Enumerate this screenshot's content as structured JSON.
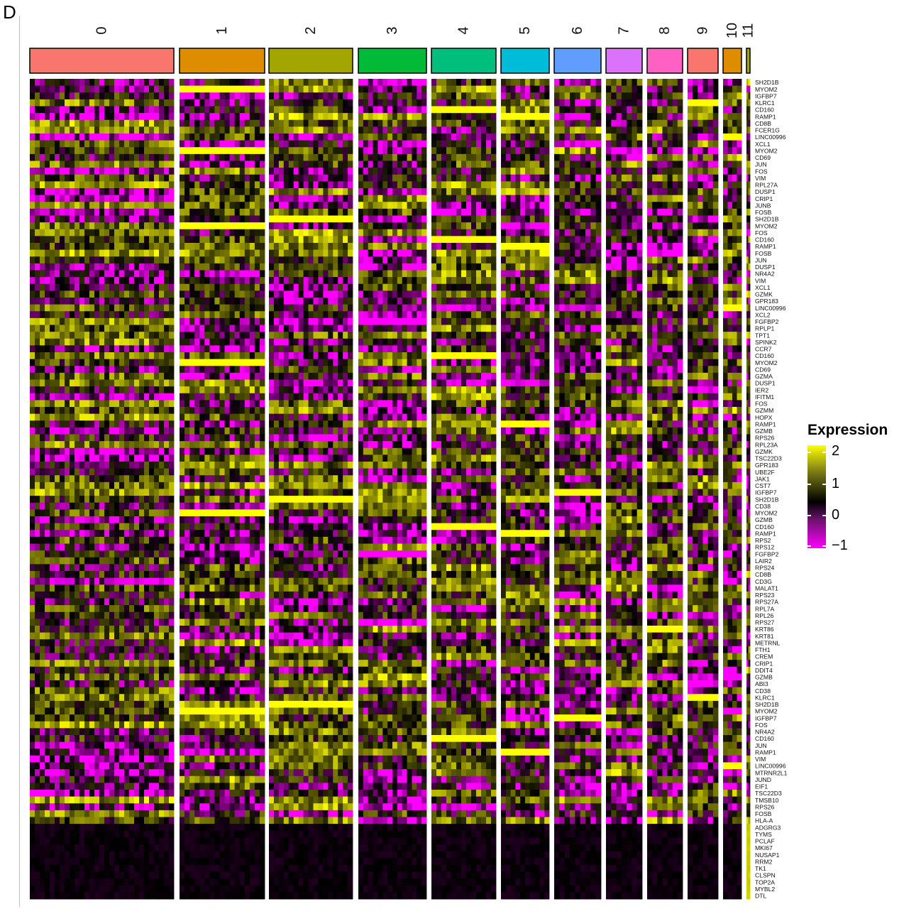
{
  "panel_label": "D",
  "chart_data": {
    "type": "heatmap",
    "title": "",
    "clusters": [
      {
        "label": "0",
        "color": "#F8766D"
      },
      {
        "label": "1",
        "color": "#DE8C00"
      },
      {
        "label": "2",
        "color": "#A3A500"
      },
      {
        "label": "3",
        "color": "#00BA38"
      },
      {
        "label": "4",
        "color": "#00BF7D"
      },
      {
        "label": "5",
        "color": "#00BCD8"
      },
      {
        "label": "6",
        "color": "#619CFF"
      },
      {
        "label": "7",
        "color": "#DB72FB"
      },
      {
        "label": "8",
        "color": "#FF61C3"
      },
      {
        "label": "9",
        "color": "#F8766D"
      },
      {
        "label": "10",
        "color": "#DE8C00"
      },
      {
        "label": "11",
        "color": "#A3A500"
      }
    ],
    "genes": [
      "SH2D1B",
      "MYOM2",
      "IGFBP7",
      "KLRC1",
      "CD160",
      "RAMP1",
      "CD8B",
      "FCER1G",
      "LINC00996",
      "XCL1",
      "MYOM2",
      "CD69",
      "JUN",
      "FOS",
      "VIM",
      "RPL27A",
      "DUSP1",
      "CRIP1",
      "JUNB",
      "FOSB",
      "SH2D1B",
      "MYOM2",
      "FOS",
      "CD160",
      "RAMP1",
      "FOSB",
      "JUN",
      "DUSP1",
      "NR4A2",
      "VIM",
      "XCL1",
      "GZMK",
      "GPR183",
      "LINC00996",
      "XCL2",
      "FGFBP2",
      "RPLP1",
      "TPT1",
      "SPINK2",
      "CCR7",
      "CD160",
      "MYOM2",
      "CD69",
      "GZMA",
      "DUSP1",
      "IER2",
      "IFITM1",
      "FOS",
      "GZMM",
      "HOPX",
      "RAMP1",
      "GZMB",
      "RPS26",
      "RPL23A",
      "GZMK",
      "TSC22D3",
      "GPR183",
      "UBE2F",
      "JAK1",
      "CST7",
      "IGFBP7",
      "SH2D1B",
      "CD38",
      "MYOM2",
      "GZMB",
      "CD160",
      "RAMP1",
      "RPS2",
      "RPS12",
      "FGFBP2",
      "LAIR2",
      "RPS24",
      "CD8B",
      "CD3G",
      "MALAT1",
      "RPS23",
      "RPS27A",
      "RPL7A",
      "RPL26",
      "RPS27",
      "KRT86",
      "KRT81",
      "METRNL",
      "FTH1",
      "CREM",
      "CRIP1",
      "DDIT4",
      "GZMB",
      "ABI3",
      "CD38",
      "KLRC1",
      "SH2D1B",
      "MYOM2",
      "IGFBP7",
      "FOS",
      "NR4A2",
      "CD160",
      "JUN",
      "RAMP1",
      "VIM",
      "LINC00996",
      "MTRNR2L1",
      "JUND",
      "EIF1",
      "TSC22D3",
      "TMSB10",
      "RPS26",
      "FOSB",
      "HLA-A",
      "ADGRG3",
      "TYMS",
      "PCLAF",
      "MKI67",
      "NUSAP1",
      "RRM2",
      "TK1",
      "CLSPN",
      "TOP2A",
      "MYBL2",
      "DTL"
    ],
    "colorscale": {
      "name": "Expression",
      "min": -1,
      "max": 2,
      "ticks": [
        "2",
        "1",
        "0",
        "−1"
      ],
      "colors": [
        "#FF00FF",
        "#000000",
        "#FFFF00"
      ]
    },
    "highlight_rows": [
      {
        "gene_index": 1,
        "cluster": "1",
        "value": 2
      },
      {
        "gene_index": 3,
        "cluster": "9",
        "value": 2
      },
      {
        "gene_index": 4,
        "cluster": "4",
        "value": 2
      },
      {
        "gene_index": 5,
        "cluster": "5",
        "value": 2
      },
      {
        "gene_index": 8,
        "cluster": "10",
        "value": 2
      },
      {
        "gene_index": 10,
        "cluster": "1",
        "value": 2
      },
      {
        "gene_index": 20,
        "cluster": "2",
        "value": 2
      },
      {
        "gene_index": 21,
        "cluster": "1",
        "value": 2
      },
      {
        "gene_index": 23,
        "cluster": "4",
        "value": 2
      },
      {
        "gene_index": 24,
        "cluster": "5",
        "value": 2
      },
      {
        "gene_index": 33,
        "cluster": "10",
        "value": 2
      },
      {
        "gene_index": 35,
        "cluster": "3",
        "value": -1
      },
      {
        "gene_index": 40,
        "cluster": "4",
        "value": 2
      },
      {
        "gene_index": 41,
        "cluster": "1",
        "value": 2
      },
      {
        "gene_index": 50,
        "cluster": "5",
        "value": 2
      },
      {
        "gene_index": 60,
        "cluster": "6",
        "value": 2
      },
      {
        "gene_index": 61,
        "cluster": "2",
        "value": 2
      },
      {
        "gene_index": 63,
        "cluster": "1",
        "value": 2
      },
      {
        "gene_index": 65,
        "cluster": "4",
        "value": 2
      },
      {
        "gene_index": 66,
        "cluster": "5",
        "value": 2
      },
      {
        "gene_index": 69,
        "cluster": "3",
        "value": -1
      },
      {
        "gene_index": 80,
        "cluster": "8",
        "value": 2
      },
      {
        "gene_index": 90,
        "cluster": "9",
        "value": 2
      },
      {
        "gene_index": 91,
        "cluster": "2",
        "value": 2
      },
      {
        "gene_index": 92,
        "cluster": "1",
        "value": 2
      },
      {
        "gene_index": 93,
        "cluster": "6",
        "value": 2
      },
      {
        "gene_index": 96,
        "cluster": "4",
        "value": 2
      },
      {
        "gene_index": 98,
        "cluster": "5",
        "value": 2
      },
      {
        "gene_index": 100,
        "cluster": "10",
        "value": 2
      }
    ]
  }
}
